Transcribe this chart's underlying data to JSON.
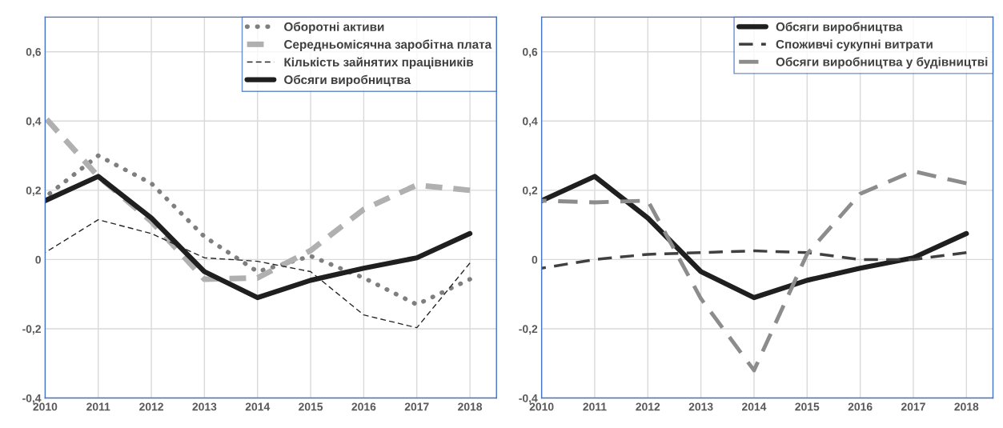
{
  "chart_data": [
    {
      "type": "line",
      "x": [
        2010,
        2011,
        2012,
        2013,
        2014,
        2015,
        2016,
        2017,
        2018
      ],
      "xlim": [
        2010,
        2018.5
      ],
      "xticks": [
        2010,
        2011,
        2012,
        2013,
        2014,
        2015,
        2016,
        2017,
        2018
      ],
      "ylim": [
        -0.4,
        0.7
      ],
      "yticks": [
        {
          "value": -0.4,
          "label": "-0,4"
        },
        {
          "value": -0.2,
          "label": "-0,2"
        },
        {
          "value": 0,
          "label": "0"
        },
        {
          "value": 0.2,
          "label": "0,2"
        },
        {
          "value": 0.4,
          "label": "0,4"
        },
        {
          "value": 0.6,
          "label": "0,6"
        }
      ],
      "grid": true,
      "legend": "top right",
      "marker": "none",
      "series": [
        {
          "name": "Оборотні активи",
          "color": "#7f7f7f",
          "line_style": "dotted",
          "values": [
            0.18,
            0.3,
            0.22,
            0.066,
            -0.035,
            0.01,
            -0.053,
            -0.13,
            -0.057
          ]
        },
        {
          "name": "Середньомісячна заробітна плата",
          "color": "#b0b0b0",
          "line_style": "dashed",
          "values": [
            0.41,
            0.24,
            0.11,
            -0.057,
            -0.053,
            0.026,
            0.145,
            0.215,
            0.2
          ]
        },
        {
          "name": "Кількість зайнятих працівників",
          "color": "#262626",
          "line_style": "dashed",
          "values": [
            0.02,
            0.115,
            0.075,
            0.005,
            -0.005,
            -0.035,
            -0.16,
            -0.197,
            -0.01
          ]
        },
        {
          "name": "Обсяги виробництва",
          "color": "#1f1f1f",
          "line_style": "solid",
          "values": [
            0.17,
            0.24,
            0.12,
            -0.035,
            -0.11,
            -0.06,
            -0.025,
            0.005,
            0.075
          ]
        }
      ]
    },
    {
      "type": "line",
      "x": [
        2010,
        2011,
        2012,
        2013,
        2014,
        2015,
        2016,
        2017,
        2018
      ],
      "xlim": [
        2010,
        2018.5
      ],
      "xticks": [
        2010,
        2011,
        2012,
        2013,
        2014,
        2015,
        2016,
        2017,
        2018
      ],
      "ylim": [
        -0.4,
        0.7
      ],
      "yticks": [
        {
          "value": -0.4,
          "label": "-0,4"
        },
        {
          "value": -0.2,
          "label": "-0,2"
        },
        {
          "value": 0,
          "label": "0"
        },
        {
          "value": 0.2,
          "label": "0,2"
        },
        {
          "value": 0.4,
          "label": "0,4"
        },
        {
          "value": 0.6,
          "label": "0,6"
        }
      ],
      "grid": true,
      "legend": "top right",
      "marker": "none",
      "series": [
        {
          "name": "Обсяги виробництва",
          "color": "#1f1f1f",
          "line_style": "solid",
          "values": [
            0.17,
            0.24,
            0.12,
            -0.035,
            -0.11,
            -0.06,
            -0.025,
            0.005,
            0.075
          ]
        },
        {
          "name": "Споживчі сукупні витрати",
          "color": "#404040",
          "line_style": "dashed",
          "values": [
            -0.025,
            0.0,
            0.015,
            0.02,
            0.025,
            0.02,
            0.0,
            0.0,
            0.02
          ]
        },
        {
          "name": "Обсяги виробництва у будівництві",
          "color": "#8c8c8c",
          "line_style": "dashed",
          "values": [
            0.17,
            0.165,
            0.17,
            -0.113,
            -0.32,
            0.016,
            0.19,
            0.255,
            0.22
          ]
        }
      ]
    }
  ]
}
